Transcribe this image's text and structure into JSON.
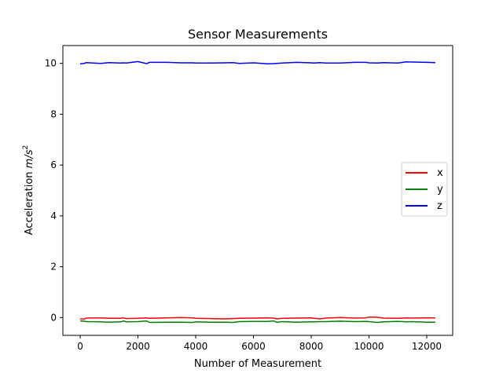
{
  "chart_data": {
    "type": "line",
    "title": "Sensor Measurements",
    "xlabel": "Number of Measurement",
    "ylabel_prefix": "Acceleration ",
    "ylabel_unit": "m/s",
    "ylabel_exponent": "2",
    "xlim": [
      -600,
      12900
    ],
    "ylim": [
      -0.7,
      10.7
    ],
    "xticks": [
      0,
      2000,
      4000,
      6000,
      8000,
      10000,
      12000
    ],
    "yticks": [
      0,
      2,
      4,
      6,
      8,
      10
    ],
    "grid": false,
    "legend_position": "center-right",
    "series": [
      {
        "name": "x",
        "color": "#ff0000",
        "x": [
          0,
          150,
          200,
          700,
          1000,
          1400,
          1500,
          1600,
          2000,
          2300,
          2400,
          3000,
          3500,
          3900,
          4000,
          4500,
          5000,
          5300,
          5500,
          6000,
          6500,
          6700,
          6800,
          7000,
          7500,
          8000,
          8100,
          8300,
          8500,
          9000,
          9500,
          9900,
          10000,
          10300,
          10500,
          11000,
          11300,
          11500,
          12000,
          12300
        ],
        "y": [
          -0.05,
          -0.06,
          -0.02,
          -0.01,
          -0.03,
          -0.03,
          -0.01,
          -0.04,
          -0.03,
          -0.01,
          -0.03,
          -0.01,
          0.0,
          -0.01,
          -0.03,
          -0.04,
          -0.05,
          -0.04,
          -0.03,
          -0.02,
          -0.01,
          -0.02,
          -0.05,
          -0.03,
          -0.02,
          -0.01,
          -0.03,
          -0.05,
          -0.02,
          0.0,
          -0.02,
          -0.01,
          0.02,
          0.01,
          -0.02,
          -0.03,
          -0.01,
          -0.02,
          -0.01,
          -0.01
        ]
      },
      {
        "name": "y",
        "color": "#008000",
        "x": [
          0,
          150,
          200,
          700,
          1000,
          1400,
          1500,
          1600,
          2000,
          2300,
          2400,
          3000,
          3500,
          3900,
          4000,
          4500,
          5000,
          5300,
          5500,
          6000,
          6500,
          6700,
          6800,
          7000,
          7500,
          8000,
          8100,
          8300,
          8500,
          9000,
          9500,
          9900,
          10000,
          10300,
          10500,
          11000,
          11300,
          11500,
          12000,
          12300
        ],
        "y": [
          -0.13,
          -0.14,
          -0.16,
          -0.17,
          -0.18,
          -0.17,
          -0.13,
          -0.17,
          -0.16,
          -0.13,
          -0.19,
          -0.18,
          -0.18,
          -0.19,
          -0.17,
          -0.18,
          -0.18,
          -0.19,
          -0.16,
          -0.15,
          -0.15,
          -0.13,
          -0.18,
          -0.16,
          -0.18,
          -0.17,
          -0.17,
          -0.16,
          -0.16,
          -0.14,
          -0.16,
          -0.15,
          -0.16,
          -0.19,
          -0.17,
          -0.15,
          -0.17,
          -0.16,
          -0.18,
          -0.18
        ]
      },
      {
        "name": "z",
        "color": "#0000ff",
        "x": [
          0,
          150,
          200,
          700,
          1000,
          1400,
          1500,
          1600,
          2000,
          2300,
          2400,
          3000,
          3500,
          3900,
          4000,
          4500,
          5000,
          5300,
          5500,
          6000,
          6500,
          6700,
          6800,
          7000,
          7500,
          8000,
          8100,
          8300,
          8500,
          9000,
          9500,
          9900,
          10000,
          10300,
          10500,
          11000,
          11300,
          11500,
          12000,
          12300
        ],
        "y": [
          9.98,
          10.0,
          10.03,
          10.0,
          10.03,
          10.01,
          10.02,
          10.01,
          10.07,
          9.99,
          10.04,
          10.04,
          10.02,
          10.02,
          10.01,
          10.01,
          10.02,
          10.03,
          10.0,
          10.02,
          9.98,
          9.99,
          10.0,
          10.01,
          10.04,
          10.02,
          10.01,
          10.03,
          10.01,
          10.01,
          10.04,
          10.04,
          10.02,
          10.01,
          10.03,
          10.01,
          10.06,
          10.05,
          10.04,
          10.03
        ]
      }
    ]
  }
}
